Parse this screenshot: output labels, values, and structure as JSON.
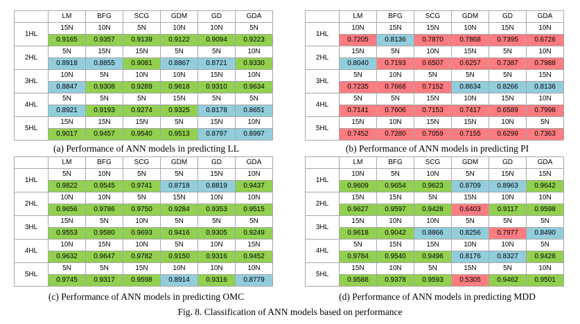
{
  "figure_caption": "Fig. 8. Classification of ANN models based on performance",
  "algorithms": [
    "LM",
    "BFG",
    "SCG",
    "GDM",
    "GD",
    "GDA"
  ],
  "hidden_layers": [
    "1HL",
    "2HL",
    "3HL",
    "4HL",
    "5HL"
  ],
  "colors": {
    "green": "#92d050",
    "blue": "#92cddc",
    "red": "#ff7c80",
    "white": "#ffffff"
  },
  "panels": [
    {
      "caption": "(a) Performance of ANN models in predicting LL",
      "rows": [
        {
          "neurons": [
            "15N",
            "10N",
            "5N",
            "10N",
            "10N",
            "5N"
          ],
          "values": [
            "0.9165",
            "0.9357",
            "0.9139",
            "0.9122",
            "0.9094",
            "0.9223"
          ],
          "colors": [
            "green",
            "green",
            "green",
            "green",
            "green",
            "green"
          ]
        },
        {
          "neurons": [
            "5N",
            "15N",
            "15N",
            "5N",
            "5N",
            "10N"
          ],
          "values": [
            "0.8918",
            "0.8855",
            "0.9081",
            "0.8867",
            "0.8721",
            "0.9330"
          ],
          "colors": [
            "blue",
            "blue",
            "green",
            "blue",
            "blue",
            "green"
          ]
        },
        {
          "neurons": [
            "10N",
            "5N",
            "10N",
            "10N",
            "15N",
            "10N"
          ],
          "values": [
            "0.8847",
            "0.9308",
            "0.9289",
            "0.9618",
            "0.9310",
            "0.9634"
          ],
          "colors": [
            "blue",
            "green",
            "green",
            "green",
            "green",
            "green"
          ]
        },
        {
          "neurons": [
            "5N",
            "5N",
            "5N",
            "15N",
            "5N",
            "5N"
          ],
          "values": [
            "0.8921",
            "0.9193",
            "0.9274",
            "0.9325",
            "0.8178",
            "0.8651"
          ],
          "colors": [
            "blue",
            "green",
            "green",
            "green",
            "blue",
            "blue"
          ]
        },
        {
          "neurons": [
            "15N",
            "15N",
            "15N",
            "5N",
            "15N",
            "10N"
          ],
          "values": [
            "0.9017",
            "0.9457",
            "0.9540",
            "0.9513",
            "0.8797",
            "0.8997"
          ],
          "colors": [
            "green",
            "green",
            "green",
            "green",
            "blue",
            "blue"
          ]
        }
      ]
    },
    {
      "caption": "(b) Performance of ANN models in predicting PI",
      "rows": [
        {
          "neurons": [
            "10N",
            "15N",
            "15N",
            "10N",
            "15N",
            "10N"
          ],
          "values": [
            "0.7205",
            "0.8136",
            "0.7870",
            "0.7868",
            "0.7395",
            "0.6726"
          ],
          "colors": [
            "red",
            "blue",
            "red",
            "red",
            "red",
            "red"
          ]
        },
        {
          "neurons": [
            "15N",
            "5N",
            "10N",
            "15N",
            "5N",
            "10N"
          ],
          "values": [
            "0.8040",
            "0.7193",
            "0.6507",
            "0.6257",
            "0.7387",
            "0.7988"
          ],
          "colors": [
            "blue",
            "red",
            "red",
            "red",
            "red",
            "red"
          ]
        },
        {
          "neurons": [
            "5N",
            "10N",
            "5N",
            "5N",
            "5N",
            "15N"
          ],
          "values": [
            "0.7235",
            "0.7668",
            "0.7152",
            "0.8634",
            "0.8266",
            "0.8136"
          ],
          "colors": [
            "red",
            "red",
            "red",
            "blue",
            "blue",
            "blue"
          ]
        },
        {
          "neurons": [
            "5N",
            "5N",
            "15N",
            "10N",
            "15N",
            "10N"
          ],
          "values": [
            "0.7141",
            "0.7606",
            "0.7153",
            "0.7417",
            "0.6589",
            "0.7998"
          ],
          "colors": [
            "red",
            "red",
            "red",
            "red",
            "red",
            "red"
          ]
        },
        {
          "neurons": [
            "15N",
            "10N",
            "15N",
            "15N",
            "10N",
            "5N"
          ],
          "values": [
            "0.7452",
            "0.7280",
            "0.7059",
            "0.7155",
            "0.6299",
            "0.7363"
          ],
          "colors": [
            "red",
            "red",
            "red",
            "red",
            "red",
            "red"
          ]
        }
      ]
    },
    {
      "caption": "(c) Performance of ANN models in predicting OMC",
      "rows": [
        {
          "neurons": [
            "5N",
            "10N",
            "5N",
            "5N",
            "15N",
            "10N"
          ],
          "values": [
            "0.9822",
            "0.9545",
            "0.9741",
            "0.8718",
            "0.8819",
            "0.9437"
          ],
          "colors": [
            "green",
            "green",
            "green",
            "blue",
            "blue",
            "green"
          ]
        },
        {
          "neurons": [
            "10N",
            "10N",
            "5N",
            "15N",
            "10N",
            "10N"
          ],
          "values": [
            "0.9656",
            "0.9786",
            "0.9750",
            "0.9284",
            "0.9353",
            "0.9515"
          ],
          "colors": [
            "green",
            "green",
            "green",
            "green",
            "green",
            "green"
          ]
        },
        {
          "neurons": [
            "15N",
            "5N",
            "10N",
            "5N",
            "5N",
            "5N"
          ],
          "values": [
            "0.9553",
            "0.9580",
            "0.9693",
            "0.9416",
            "0.9305",
            "0.9249"
          ],
          "colors": [
            "green",
            "green",
            "green",
            "green",
            "green",
            "green"
          ]
        },
        {
          "neurons": [
            "10N",
            "15N",
            "10N",
            "5N",
            "10N",
            "15N"
          ],
          "values": [
            "0.9632",
            "0.9647",
            "0.9782",
            "0.9150",
            "0.9316",
            "0.9452"
          ],
          "colors": [
            "green",
            "green",
            "green",
            "green",
            "green",
            "green"
          ]
        },
        {
          "neurons": [
            "5N",
            "5N",
            "15N",
            "10N",
            "10N",
            "10N"
          ],
          "values": [
            "0.9745",
            "0.9317",
            "0.9598",
            "0.8914",
            "0.9316",
            "0.8779"
          ],
          "colors": [
            "green",
            "green",
            "green",
            "blue",
            "green",
            "blue"
          ]
        }
      ]
    },
    {
      "caption": "(d) Performance of ANN models in predicting MDD",
      "rows": [
        {
          "neurons": [
            "10N",
            "5N",
            "10N",
            "5N",
            "15N",
            "15N"
          ],
          "values": [
            "0.9609",
            "0.9654",
            "0.9623",
            "0.8709",
            "0.8963",
            "0.9642"
          ],
          "colors": [
            "green",
            "green",
            "green",
            "blue",
            "blue",
            "green"
          ]
        },
        {
          "neurons": [
            "15N",
            "15N",
            "5N",
            "15N",
            "10N",
            "10N"
          ],
          "values": [
            "0.9627",
            "0.9597",
            "0.9428",
            "0.6403",
            "0.9117",
            "0.9598"
          ],
          "colors": [
            "green",
            "green",
            "green",
            "red",
            "green",
            "green"
          ]
        },
        {
          "neurons": [
            "15N",
            "10N",
            "10N",
            "5N",
            "5N",
            "5N"
          ],
          "values": [
            "0.9618",
            "0.9042",
            "0.8866",
            "0.8256",
            "0.7977",
            "0.8490"
          ],
          "colors": [
            "green",
            "green",
            "blue",
            "blue",
            "red",
            "blue"
          ]
        },
        {
          "neurons": [
            "5N",
            "15N",
            "15N",
            "10N",
            "10N",
            "5N"
          ],
          "values": [
            "0.9784",
            "0.9540",
            "0.9496",
            "0.8176",
            "0.8327",
            "0.9428"
          ],
          "colors": [
            "green",
            "green",
            "green",
            "blue",
            "blue",
            "green"
          ]
        },
        {
          "neurons": [
            "15N",
            "10N",
            "5N",
            "15N",
            "5N",
            "10N"
          ],
          "values": [
            "0.9588",
            "0.9378",
            "0.9593",
            "0.5305",
            "0.9462",
            "0.9501"
          ],
          "colors": [
            "green",
            "green",
            "green",
            "red",
            "green",
            "green"
          ]
        }
      ]
    }
  ]
}
